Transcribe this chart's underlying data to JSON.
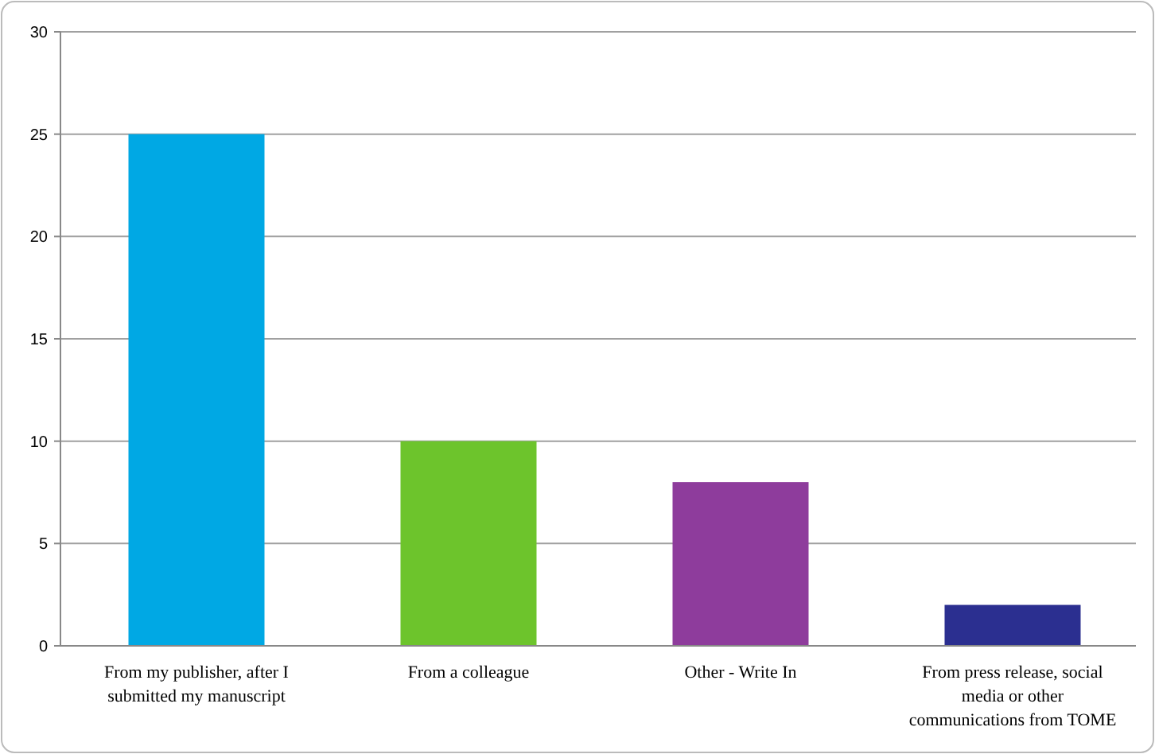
{
  "chart_data": {
    "type": "bar",
    "categories": [
      "From my publisher, after I submitted my manuscript",
      "From a colleague",
      "Other - Write In",
      "From press release, social media or other communications from TOME"
    ],
    "values": [
      25,
      10,
      8,
      2
    ],
    "colors": [
      "#00a8e4",
      "#6dc42c",
      "#8e3c9c",
      "#2b2f90"
    ],
    "ylim": [
      0,
      30
    ],
    "yticks": [
      0,
      5,
      10,
      15,
      20,
      25,
      30
    ],
    "grid": "y"
  }
}
